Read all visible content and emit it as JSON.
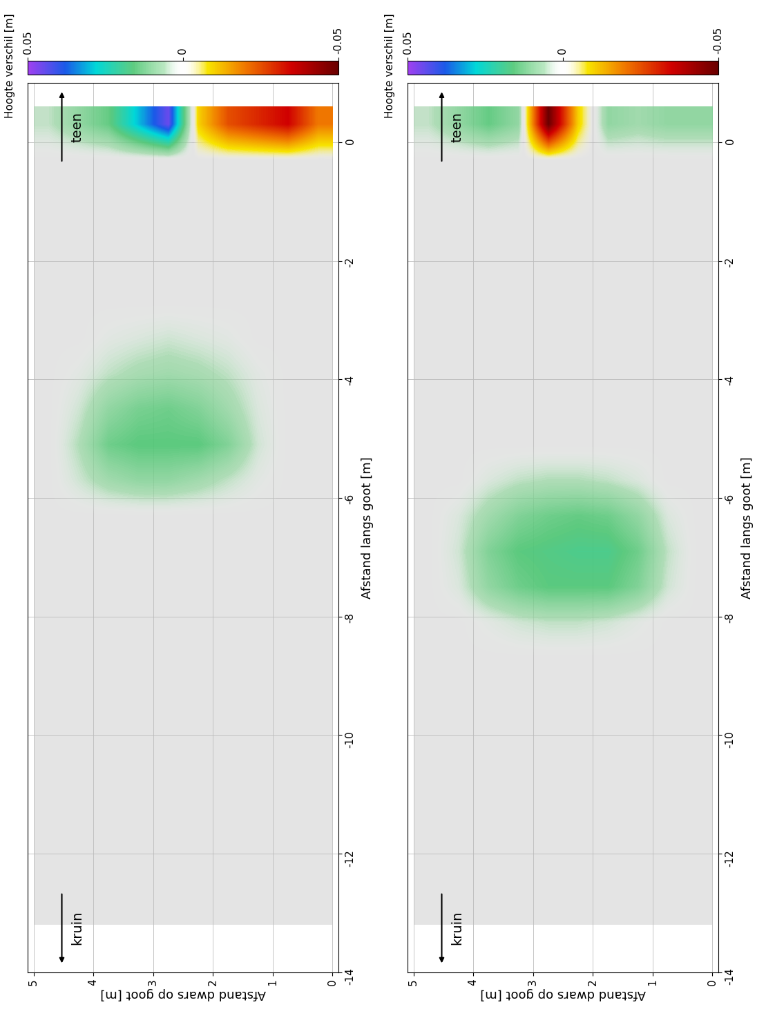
{
  "chart_data": [
    {
      "type": "heatmap",
      "x_label": "Afstand dwars op goot [m]",
      "y_label": "Afstand langs goot [m]",
      "xlim": [
        5.1,
        -0.1
      ],
      "xticks": [
        0,
        1,
        2,
        3,
        4,
        5
      ],
      "ylim": [
        -14,
        1
      ],
      "yticks": [
        -14,
        -12,
        -10,
        -8,
        -6,
        -4,
        -2,
        0
      ],
      "grid": true,
      "x_edges": [
        0,
        0.5,
        1,
        1.5,
        2,
        2.5,
        3,
        3.5,
        4,
        4.5,
        5
      ],
      "y_edges": [
        -13.2,
        -12.6,
        -12.0,
        -11.4,
        -10.8,
        -10.2,
        -9.6,
        -9.0,
        -8.4,
        -7.8,
        -7.2,
        -6.6,
        -6.0,
        -5.4,
        -4.8,
        -4.2,
        -3.6,
        -3.0,
        -2.4,
        -1.8,
        -1.2,
        -0.6,
        0,
        0.6
      ],
      "cells": [
        [
          0,
          0,
          0,
          0,
          0,
          0,
          0,
          0,
          0,
          0
        ],
        [
          0,
          0,
          0,
          0,
          0,
          0,
          0,
          0,
          0,
          0
        ],
        [
          0,
          0,
          0,
          0,
          0,
          0,
          0,
          0,
          0,
          0
        ],
        [
          0,
          0,
          0,
          0,
          0,
          0,
          0,
          0,
          0,
          0
        ],
        [
          0,
          0,
          0,
          0,
          0,
          0,
          0,
          0,
          0,
          0
        ],
        [
          0,
          0,
          0,
          0,
          0,
          0,
          0,
          0,
          0,
          0
        ],
        [
          0,
          0,
          0,
          0,
          0,
          0,
          0,
          0,
          0,
          0
        ],
        [
          0,
          0,
          0,
          0,
          0,
          0,
          0,
          0,
          0,
          0
        ],
        [
          0,
          0,
          0,
          0,
          0,
          0,
          0,
          0,
          0,
          0
        ],
        [
          0,
          0,
          0,
          0,
          0,
          0,
          0,
          0,
          0,
          0
        ],
        [
          0,
          0,
          0,
          0,
          0,
          0,
          0,
          0,
          0,
          0
        ],
        [
          0,
          0,
          0,
          0,
          0,
          0,
          0,
          0,
          0,
          0
        ],
        [
          0,
          0,
          0.002,
          0.005,
          0.008,
          0.01,
          0.01,
          0.008,
          0.004,
          0
        ],
        [
          0,
          0,
          0.004,
          0.012,
          0.016,
          0.016,
          0.016,
          0.014,
          0.006,
          0
        ],
        [
          0,
          0,
          0.003,
          0.008,
          0.012,
          0.014,
          0.013,
          0.01,
          0.004,
          0
        ],
        [
          0,
          0,
          0.002,
          0.005,
          0.007,
          0.008,
          0.007,
          0.005,
          0.002,
          0
        ],
        [
          0,
          0,
          0,
          0.002,
          0.003,
          0.004,
          0.003,
          0.002,
          0,
          0
        ],
        [
          0,
          0,
          0,
          0,
          0,
          0,
          0,
          0,
          0,
          0
        ],
        [
          0,
          0,
          0,
          0,
          0,
          0,
          0,
          0,
          0,
          0
        ],
        [
          0,
          0,
          0,
          0,
          0,
          0,
          0,
          0,
          0,
          0
        ],
        [
          0,
          0,
          0,
          0,
          0,
          0,
          0,
          0,
          0,
          0
        ],
        [
          0,
          0,
          0,
          0,
          0,
          0,
          0,
          0,
          0,
          0
        ],
        [
          -0.02,
          -0.035,
          -0.03,
          -0.025,
          -0.01,
          0.045,
          0.03,
          0.015,
          0.01,
          0.005
        ]
      ],
      "colorbar_label": "Hoogte verschil [m]",
      "colorbar_range": [
        0.05,
        -0.05
      ],
      "colorbar_ticks": [
        0.05,
        0,
        -0.05
      ],
      "annotations": [
        "teen",
        "kruin"
      ]
    },
    {
      "type": "heatmap",
      "x_label": "Afstand dwars op goot [m]",
      "y_label": "Afstand langs goot [m]",
      "xlim": [
        5.1,
        -0.1
      ],
      "xticks": [
        0,
        1,
        2,
        3,
        4,
        5
      ],
      "ylim": [
        -14,
        1
      ],
      "yticks": [
        -14,
        -12,
        -10,
        -8,
        -6,
        -4,
        -2,
        0
      ],
      "grid": true,
      "x_edges": [
        0,
        0.5,
        1,
        1.5,
        2,
        2.5,
        3,
        3.5,
        4,
        4.5,
        5
      ],
      "y_edges": [
        -13.2,
        -12.6,
        -12.0,
        -11.4,
        -10.8,
        -10.2,
        -9.6,
        -9.0,
        -8.4,
        -7.8,
        -7.2,
        -6.6,
        -6.0,
        -5.4,
        -4.8,
        -4.2,
        -3.6,
        -3.0,
        -2.4,
        -1.8,
        -1.2,
        -0.6,
        0,
        0.6
      ],
      "cells": [
        [
          0,
          0,
          0,
          0,
          0,
          0,
          0,
          0,
          0,
          0
        ],
        [
          0,
          0,
          0,
          0,
          0,
          0,
          0,
          0,
          0,
          0
        ],
        [
          0,
          0,
          0,
          0,
          0,
          0,
          0,
          0,
          0,
          0
        ],
        [
          0,
          0,
          0,
          0,
          0,
          0,
          0,
          0,
          0,
          0
        ],
        [
          0,
          0,
          0,
          0,
          0,
          0,
          0,
          0,
          0,
          0
        ],
        [
          0,
          0,
          0,
          0,
          0,
          0,
          0,
          0,
          0,
          0
        ],
        [
          0,
          0,
          0,
          0,
          0,
          0,
          0,
          0,
          0,
          0
        ],
        [
          0,
          0,
          0,
          0,
          0,
          0,
          0,
          0,
          0,
          0
        ],
        [
          0,
          0,
          0.002,
          0.004,
          0.005,
          0.005,
          0.004,
          0.002,
          0,
          0
        ],
        [
          0,
          0.004,
          0.012,
          0.016,
          0.016,
          0.016,
          0.014,
          0.01,
          0.003,
          0
        ],
        [
          0,
          0.005,
          0.014,
          0.018,
          0.018,
          0.017,
          0.016,
          0.012,
          0.004,
          0
        ],
        [
          0,
          0.003,
          0.01,
          0.014,
          0.015,
          0.014,
          0.012,
          0.008,
          0.003,
          0
        ],
        [
          0,
          0,
          0.003,
          0.005,
          0.006,
          0.006,
          0.005,
          0.003,
          0,
          0
        ],
        [
          0,
          0,
          0,
          0,
          0,
          0,
          0,
          0,
          0,
          0
        ],
        [
          0,
          0,
          0,
          0,
          0,
          0,
          0,
          0,
          0,
          0
        ],
        [
          0,
          0,
          0,
          0,
          0,
          0,
          0,
          0,
          0,
          0
        ],
        [
          0,
          0,
          0,
          0,
          0,
          0,
          0,
          0,
          0,
          0
        ],
        [
          0,
          0,
          0,
          0,
          0,
          0,
          0,
          0,
          0,
          0
        ],
        [
          0,
          0,
          0,
          0,
          0,
          0,
          0,
          0,
          0,
          0
        ],
        [
          0,
          0,
          0,
          0,
          0,
          0,
          0,
          0,
          0,
          0
        ],
        [
          0,
          0,
          0,
          0,
          0,
          0,
          0,
          0,
          0,
          0
        ],
        [
          0,
          0,
          0,
          0,
          0,
          0,
          0,
          0,
          0,
          0
        ],
        [
          0.01,
          0.01,
          0.008,
          0.01,
          -0.01,
          -0.05,
          0.01,
          0.015,
          0.01,
          0.005
        ]
      ],
      "colorbar_label": "Hoogte verschil [m]",
      "colorbar_range": [
        0.05,
        -0.05
      ],
      "colorbar_ticks": [
        0.05,
        0,
        -0.05
      ],
      "annotations": [
        "teen",
        "kruin"
      ]
    }
  ]
}
